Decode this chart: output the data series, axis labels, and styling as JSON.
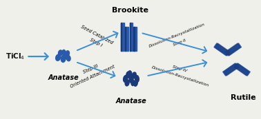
{
  "bg_color": "#f0f0eb",
  "blue_dark": "#1a3a7a",
  "blue_mid": "#2a5aaa",
  "blue_light": "#4a8fd9",
  "arrow_color": "#3a8fd9",
  "text_color": "#111111",
  "ticl4_label": "TiCl$_4$",
  "anatase_label": "Anatase",
  "brookite_label": "Brookite",
  "rutile_label": "Rutile",
  "step1_top": "Seed Catalyzed",
  "step1_bot": "Step I",
  "step2_top": "Dissolution-Recrystallization",
  "step2_bot": "Step II",
  "step3_top": "Step III",
  "step3_bot": "Oriented Attachment",
  "step4_top": "Step IV",
  "step4_bot": "Dissolution-Recrystallization"
}
